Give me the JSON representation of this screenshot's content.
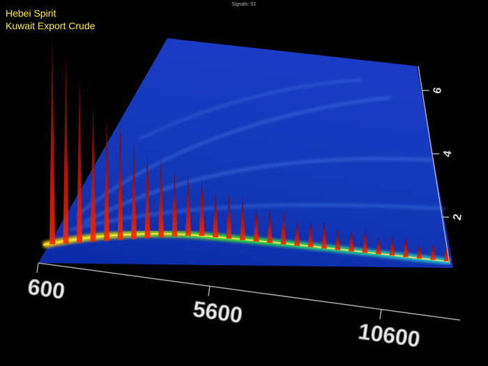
{
  "chart_data": {
    "type": "surface3d",
    "title": "Signals:  S1",
    "annotations": [
      "Hebei Spirit",
      "Kuwait Export Crude"
    ],
    "xlim": [
      600,
      12900
    ],
    "xticks": [
      600,
      5600,
      10600
    ],
    "ylim": [
      0.5,
      6.8
    ],
    "yticks": [
      2,
      4,
      6
    ]
  }
}
